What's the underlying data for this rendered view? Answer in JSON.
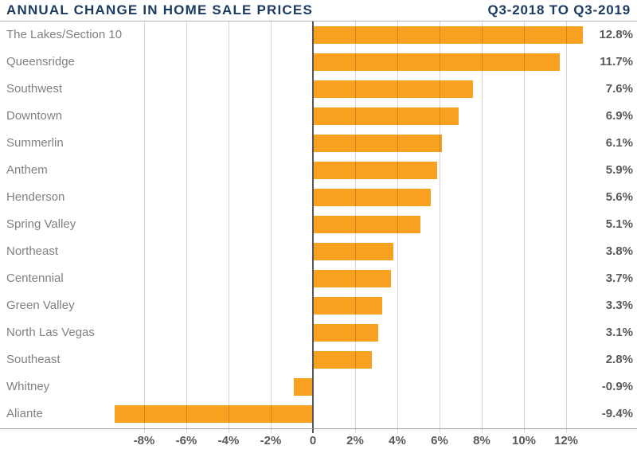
{
  "header": {
    "title": "ANNUAL CHANGE IN HOME SALE PRICES",
    "period": "Q3-2018 TO Q3-2019"
  },
  "colors": {
    "navy_title": "#1B3A5F",
    "bar_orange": "#F8A01F",
    "gridline_gray": "#CCCCCC",
    "zero_line_gray": "#54565A",
    "axis_line_gray": "#9A9A9A",
    "category_label_gray": "#7E8183",
    "value_label_gray": "#58595B"
  },
  "chart_data": {
    "type": "bar",
    "orientation": "horizontal",
    "title": "ANNUAL CHANGE IN HOME SALE PRICES",
    "subtitle": "Q3-2018 TO Q3-2019",
    "categories": [
      "The Lakes/Section 10",
      "Queensridge",
      "Southwest",
      "Downtown",
      "Summerlin",
      "Anthem",
      "Henderson",
      "Spring Valley",
      "Northeast",
      "Centennial",
      "Green Valley",
      "North Las Vegas",
      "Southeast",
      "Whitney",
      "Aliante"
    ],
    "values": [
      12.8,
      11.7,
      7.6,
      6.9,
      6.1,
      5.9,
      5.6,
      5.1,
      3.8,
      3.7,
      3.3,
      3.1,
      2.8,
      -0.9,
      -9.4
    ],
    "value_labels": [
      "12.8%",
      "11.7%",
      "7.6%",
      "6.9%",
      "6.1%",
      "5.9%",
      "5.6%",
      "5.1%",
      "3.8%",
      "3.7%",
      "3.3%",
      "3.1%",
      "2.8%",
      "-0.9%",
      "-9.4%"
    ],
    "x_ticks": [
      -8,
      -6,
      -4,
      -2,
      0,
      2,
      4,
      6,
      8,
      10,
      12
    ],
    "x_tick_labels": [
      "-8%",
      "-6%",
      "-4%",
      "-2%",
      "0",
      "2%",
      "4%",
      "6%",
      "8%",
      "10%",
      "12%"
    ],
    "xlim": [
      -14.8,
      15.4
    ],
    "grid": true,
    "legend": false,
    "xlabel": "",
    "ylabel": ""
  }
}
